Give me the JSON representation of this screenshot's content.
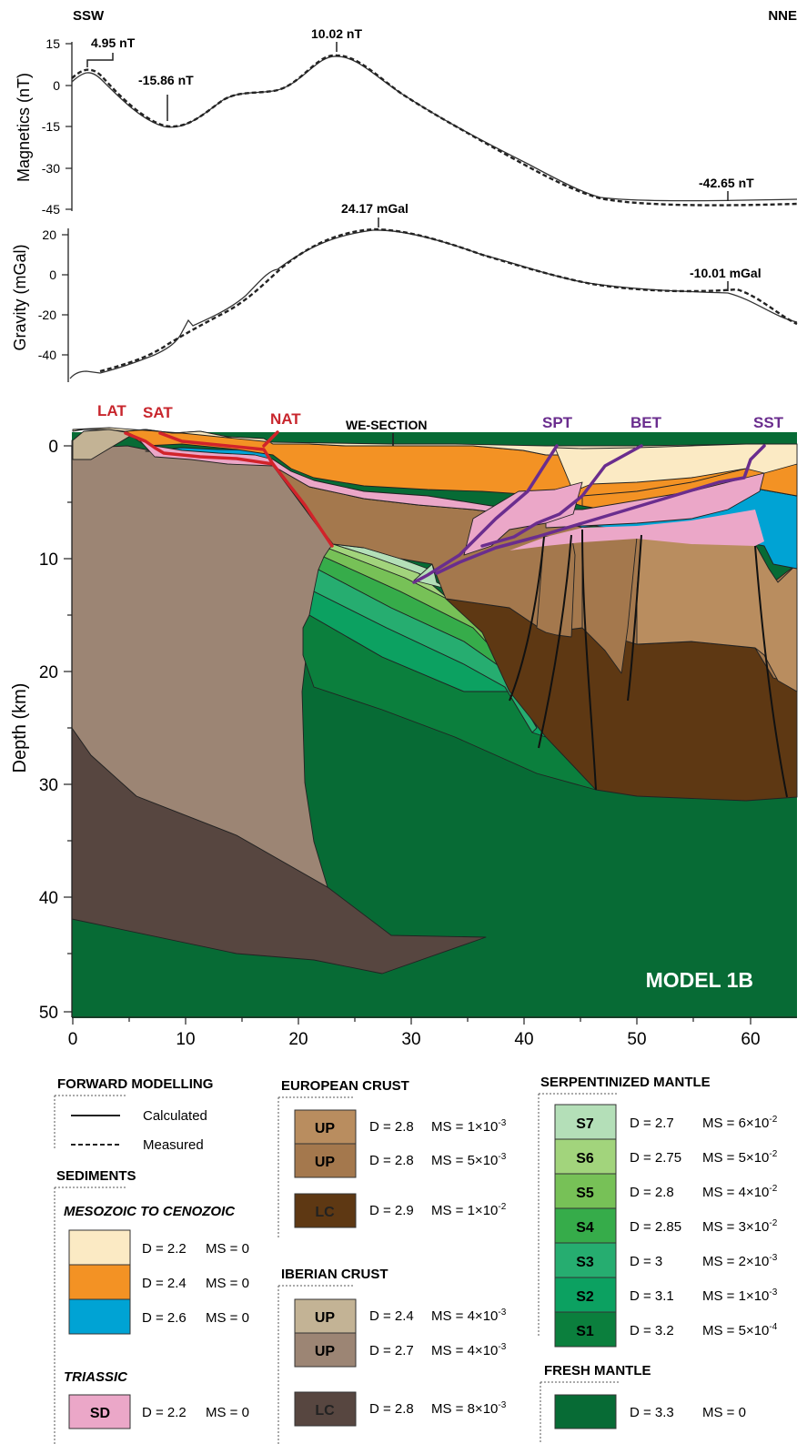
{
  "directions": {
    "left": "SSW",
    "right": "NNE"
  },
  "magnetics": {
    "ylabel": "Magnetics (nT)",
    "ticks": [
      "15",
      "0",
      "-15",
      "-30",
      "-45"
    ],
    "annotations": [
      "4.95 nT",
      "-15.86 nT",
      "10.02 nT",
      "-42.65 nT"
    ]
  },
  "gravity": {
    "ylabel": "Gravity (mGal)",
    "ticks": [
      "20",
      "0",
      "-20",
      "-40"
    ],
    "annotations": [
      "24.17 mGal",
      "-10.01 mGal"
    ]
  },
  "section": {
    "ylabel": "Depth (km)",
    "depth_ticks": [
      "0",
      "10",
      "20",
      "30",
      "40",
      "50"
    ],
    "distance_ticks": [
      "0",
      "10",
      "20",
      "30",
      "40",
      "50",
      "60"
    ],
    "labels": {
      "lat": "LAT",
      "sat": "SAT",
      "nat": "NAT",
      "we": "WE-SECTION",
      "spt": "SPT",
      "bet": "BET",
      "sst": "SST",
      "model": "MODEL 1B"
    }
  },
  "legend": {
    "forward_title": "FORWARD MODELLING",
    "calculated": "Calculated",
    "measured": "Measured",
    "sediments_title": "SEDIMENTS",
    "meso_title": "MESOZOIC TO CENOZOIC",
    "meso": [
      {
        "color": "#fbeac4",
        "d": "D = 2.2",
        "ms": "MS = 0"
      },
      {
        "color": "#f39224",
        "d": "D = 2.4",
        "ms": "MS = 0"
      },
      {
        "color": "#00a3d4",
        "d": "D = 2.6",
        "ms": "MS = 0"
      }
    ],
    "triassic_title": "TRIASSIC",
    "triassic": {
      "color": "#eba7c8",
      "code": "SD",
      "d": "D = 2.2",
      "ms": "MS = 0"
    },
    "european_title": "EUROPEAN CRUST",
    "european": [
      {
        "color": "#b98d5f",
        "code": "UP",
        "d": "D = 2.8",
        "ms_base": "MS = 1×10",
        "ms_exp": "-3"
      },
      {
        "color": "#a4784d",
        "code": "UP",
        "d": "D = 2.8",
        "ms_base": "MS = 5×10",
        "ms_exp": "-3"
      },
      {
        "color": "#5e3813",
        "code": "LC",
        "d": "D = 2.9",
        "ms_base": "MS = 1×10",
        "ms_exp": "-2"
      }
    ],
    "iberian_title": "IBERIAN CRUST",
    "iberian": [
      {
        "color": "#c3b395",
        "code": "UP",
        "d": "D = 2.4",
        "ms_base": "MS = 4×10",
        "ms_exp": "-3"
      },
      {
        "color": "#9c8574",
        "code": "UP",
        "d": "D = 2.7",
        "ms_base": "MS = 4×10",
        "ms_exp": "-3"
      },
      {
        "color": "#574640",
        "code": "LC",
        "d": "D = 2.8",
        "ms_base": "MS = 8×10",
        "ms_exp": "-3"
      }
    ],
    "serp_title": "SERPENTINIZED MANTLE",
    "serp": [
      {
        "color": "#b4dfb8",
        "code": "S7",
        "d": "D = 2.7",
        "ms_base": "MS = 6×10",
        "ms_exp": "-2"
      },
      {
        "color": "#a2d47c",
        "code": "S6",
        "d": "D = 2.75",
        "ms_base": "MS = 5×10",
        "ms_exp": "-2"
      },
      {
        "color": "#77c157",
        "code": "S5",
        "d": "D = 2.8",
        "ms_base": "MS = 4×10",
        "ms_exp": "-2"
      },
      {
        "color": "#36ac4a",
        "code": "S4",
        "d": "D = 2.85",
        "ms_base": "MS = 3×10",
        "ms_exp": "-2"
      },
      {
        "color": "#26ad70",
        "code": "S3",
        "d": "D = 3",
        "ms_base": "MS = 2×10",
        "ms_exp": "-3"
      },
      {
        "color": "#0ca161",
        "code": "S2",
        "d": "D = 3.1",
        "ms_base": "MS = 1×10",
        "ms_exp": "-3"
      },
      {
        "color": "#0b7f3d",
        "code": "S1",
        "d": "D = 3.2",
        "ms_base": "MS = 5×10",
        "ms_exp": "-4"
      }
    ],
    "fresh_title": "FRESH MANTLE",
    "fresh": {
      "color": "#076b35",
      "d": "D = 3.3",
      "ms": "MS = 0"
    }
  },
  "colors": {
    "fault_red": "#d1232a",
    "fault_purple": "#6a2d8e",
    "label_red": "#c8262d",
    "label_purple": "#6a2d8e"
  }
}
